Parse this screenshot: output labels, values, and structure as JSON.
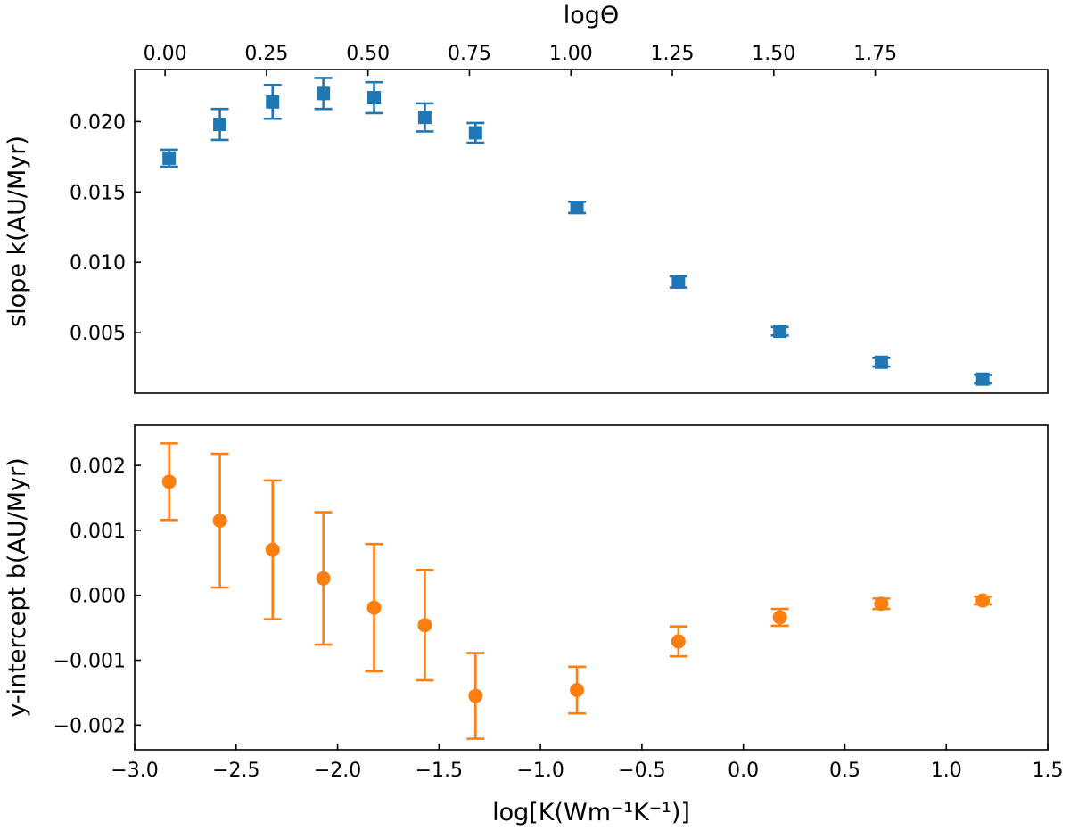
{
  "chart_data": [
    {
      "type": "scatter",
      "panel": "top",
      "xlabel": "",
      "ylabel": "slope k(AU/Myr)",
      "top_axis_label": "logΘ",
      "xlim": [
        -3.0,
        1.5
      ],
      "ylim": [
        0.0007,
        0.0237
      ],
      "top_axis_ticks": [
        "0.00",
        "0.25",
        "0.50",
        "0.75",
        "1.00",
        "1.25",
        "1.50",
        "1.75"
      ],
      "top_axis_tick_values": [
        0.0,
        0.25,
        0.5,
        0.75,
        1.0,
        1.25,
        1.5,
        1.75
      ],
      "top_axis_mapping": {
        "slope": 2.0,
        "offset": -2.85
      },
      "yticks": [
        "0.005",
        "0.010",
        "0.015",
        "0.020"
      ],
      "ytick_values": [
        0.005,
        0.01,
        0.015,
        0.02
      ],
      "color": "#1f77b4",
      "marker": "square",
      "series": [
        {
          "name": "slope k",
          "x": [
            -2.83,
            -2.58,
            -2.32,
            -2.07,
            -1.82,
            -1.57,
            -1.32,
            -0.82,
            -0.32,
            0.18,
            0.68,
            1.18
          ],
          "y": [
            0.0174,
            0.0198,
            0.0214,
            0.022,
            0.0217,
            0.0203,
            0.0192,
            0.0139,
            0.0086,
            0.0051,
            0.0029,
            0.0017
          ],
          "yerr": [
            0.0006,
            0.0011,
            0.0012,
            0.0011,
            0.0011,
            0.001,
            0.0007,
            0.0004,
            0.0004,
            0.0003,
            0.0003,
            0.0003
          ]
        }
      ]
    },
    {
      "type": "scatter",
      "panel": "bottom",
      "xlabel": "log[K(Wm⁻¹K⁻¹)]",
      "ylabel": "y-intercept b(AU/Myr)",
      "xlim": [
        -3.0,
        1.5
      ],
      "ylim": [
        -0.00238,
        0.00262
      ],
      "xticks": [
        "−3.0",
        "−2.5",
        "−2.0",
        "−1.5",
        "−1.0",
        "−0.5",
        "0.0",
        "0.5",
        "1.0",
        "1.5"
      ],
      "xtick_values": [
        -3.0,
        -2.5,
        -2.0,
        -1.5,
        -1.0,
        -0.5,
        0.0,
        0.5,
        1.0,
        1.5
      ],
      "yticks": [
        "−0.002",
        "−0.001",
        "0.000",
        "0.001",
        "0.002"
      ],
      "ytick_values": [
        -0.002,
        -0.001,
        0.0,
        0.001,
        0.002
      ],
      "color": "#ff7f0e",
      "marker": "circle",
      "series": [
        {
          "name": "y-intercept b",
          "x": [
            -2.83,
            -2.58,
            -2.32,
            -2.07,
            -1.82,
            -1.57,
            -1.32,
            -0.82,
            -0.32,
            0.18,
            0.68,
            1.18
          ],
          "y": [
            0.00175,
            0.00115,
            0.0007,
            0.00026,
            -0.00019,
            -0.00046,
            -0.00155,
            -0.00146,
            -0.00071,
            -0.00034,
            -0.00013,
            -8e-05
          ],
          "yerr": [
            0.00059,
            0.00103,
            0.00107,
            0.00102,
            0.00098,
            0.00085,
            0.00066,
            0.00036,
            0.00023,
            0.00013,
            8e-05,
            6e-05
          ]
        }
      ]
    }
  ]
}
